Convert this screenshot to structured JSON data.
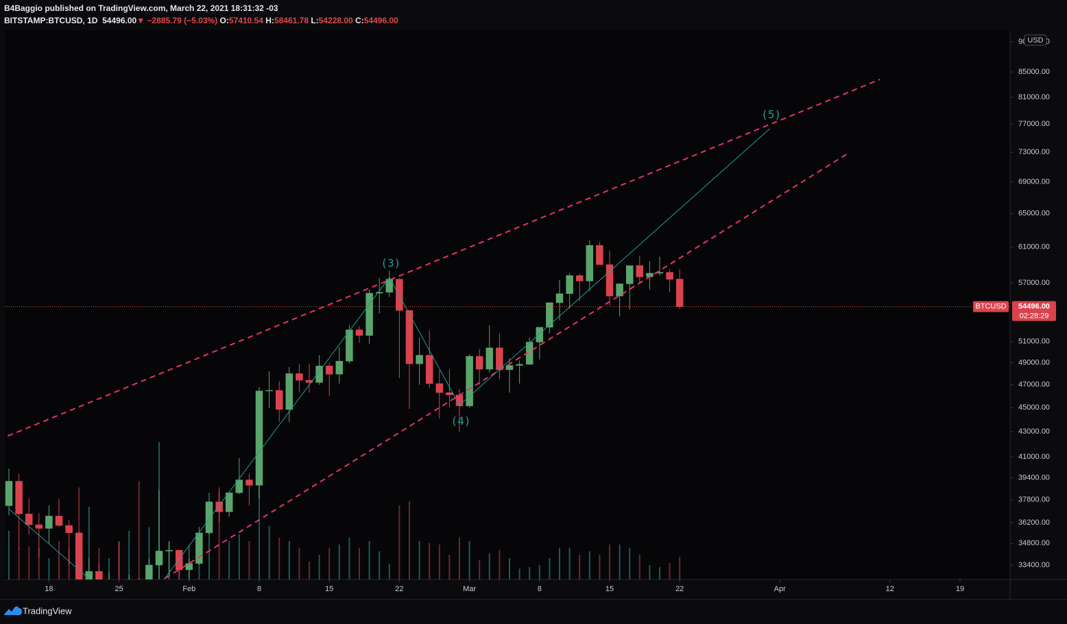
{
  "header": {
    "publisher": "B4Baggio published on TradingView.com, March 22, 2021 18:31:32 -03",
    "symbol": "BITSTAMP:BTCUSD, 1D",
    "last": "54496.00",
    "arrow": "▼",
    "change": "−2885.79 (−5.03%)",
    "ohlc": [
      {
        "key": "O:",
        "value": "57410.54"
      },
      {
        "key": "H:",
        "value": "58461.78"
      },
      {
        "key": "L:",
        "value": "54228.00"
      },
      {
        "key": "C:",
        "value": "54496.00"
      }
    ]
  },
  "footer": {
    "brand": "TradingView"
  },
  "chart_data": {
    "type": "candlestick",
    "log_scale": true,
    "up_color": "#5ba56c",
    "down_color": "#d9434e",
    "volume_up_color": "#1d5a55",
    "volume_down_color": "#6e262c",
    "currency": "USD",
    "x": [
      "01-14",
      "01-15",
      "01-16",
      "01-17",
      "01-18",
      "01-19",
      "01-20",
      "01-21",
      "01-22",
      "01-23",
      "01-24",
      "01-25",
      "01-26",
      "01-27",
      "01-28",
      "01-29",
      "01-30",
      "01-31",
      "02-01",
      "02-02",
      "02-03",
      "02-04",
      "02-05",
      "02-06",
      "02-07",
      "02-08",
      "02-09",
      "02-10",
      "02-11",
      "02-12",
      "02-13",
      "02-14",
      "02-15",
      "02-16",
      "02-17",
      "02-18",
      "02-19",
      "02-20",
      "02-21",
      "02-22",
      "02-23",
      "02-24",
      "02-25",
      "02-26",
      "02-27",
      "02-28",
      "03-01",
      "03-02",
      "03-03",
      "03-04",
      "03-05",
      "03-06",
      "03-07",
      "03-08",
      "03-09",
      "03-10",
      "03-11",
      "03-12",
      "03-13",
      "03-14",
      "03-15",
      "03-16",
      "03-17",
      "03-18",
      "03-19",
      "03-20",
      "03-21",
      "03-22"
    ],
    "open": [
      37370,
      39150,
      36800,
      36050,
      35800,
      36650,
      36000,
      35500,
      30800,
      33000,
      32100,
      32300,
      32250,
      32500,
      30400,
      33400,
      34300,
      34350,
      33100,
      33500,
      35500,
      37650,
      36950,
      38300,
      39250,
      38850,
      46450,
      46500,
      44850,
      48000,
      47400,
      47200,
      48700,
      47950,
      49150,
      52150,
      51600,
      55900,
      56000,
      57400,
      54100,
      48900,
      49700,
      47100,
      46300,
      46100,
      45150,
      49600,
      48400,
      50400,
      48350,
      48750,
      48850,
      50950,
      52400,
      54900,
      55850,
      57800,
      57200,
      61200,
      59000,
      55600,
      56900,
      58900,
      57650,
      58050,
      58150,
      57410.54
    ],
    "high": [
      40100,
      39700,
      37900,
      36850,
      37400,
      37850,
      36400,
      35600,
      33850,
      33500,
      32950,
      34900,
      32800,
      32600,
      33800,
      38500,
      34900,
      34400,
      34700,
      35900,
      37700,
      38700,
      38300,
      40900,
      39700,
      46800,
      48200,
      47300,
      48600,
      48900,
      48900,
      49700,
      49000,
      50500,
      52600,
      52500,
      56300,
      57500,
      58350,
      57500,
      54200,
      51400,
      52100,
      48300,
      48400,
      46600,
      49800,
      50300,
      52600,
      51800,
      49400,
      49200,
      51400,
      52400,
      54900,
      57300,
      58100,
      58000,
      61800,
      61600,
      60600,
      56900,
      58900,
      60000,
      59400,
      59900,
      58500,
      58461.78
    ],
    "low": [
      36700,
      34400,
      35400,
      33900,
      34800,
      35900,
      33400,
      30100,
      28800,
      31400,
      30900,
      31900,
      30800,
      29200,
      29900,
      31900,
      32800,
      32300,
      32300,
      33400,
      35400,
      36200,
      36600,
      38200,
      37400,
      37900,
      45000,
      43800,
      43800,
      46300,
      46300,
      47000,
      46000,
      47100,
      48900,
      50900,
      50800,
      53800,
      55500,
      47600,
      44900,
      47000,
      46700,
      44100,
      45000,
      43000,
      45000,
      47000,
      48100,
      47500,
      46300,
      47100,
      48800,
      49300,
      51800,
      53100,
      54300,
      55100,
      56100,
      59000,
      54600,
      53500,
      54200,
      57000,
      56300,
      57800,
      56000,
      54228
    ],
    "close": [
      39150,
      36800,
      36050,
      35800,
      36650,
      36000,
      35500,
      30800,
      33000,
      32100,
      32300,
      32250,
      32500,
      30400,
      33400,
      34300,
      34350,
      33100,
      33500,
      35500,
      37650,
      36950,
      38300,
      39250,
      38850,
      46450,
      46500,
      44850,
      48000,
      47400,
      47200,
      48700,
      47950,
      49150,
      52150,
      51600,
      55900,
      56000,
      57400,
      54100,
      48900,
      49700,
      47100,
      46300,
      46100,
      45150,
      49600,
      48400,
      50400,
      48350,
      48750,
      48850,
      50950,
      52400,
      54900,
      55850,
      57800,
      57200,
      61200,
      59000,
      55600,
      56900,
      58900,
      57650,
      58050,
      58150,
      57381.79,
      54496
    ],
    "volume": [
      7100,
      4600,
      4800,
      4600,
      3100,
      5600,
      4600,
      13400,
      10600,
      4600,
      3100,
      5600,
      7100,
      14300,
      7600,
      20000,
      5600,
      2600,
      3100,
      5600,
      12600,
      12800,
      5600,
      6600,
      5600,
      18600,
      7800,
      6100,
      5600,
      4600,
      2600,
      3600,
      4600,
      5100,
      6100,
      4600,
      5600,
      4100,
      2300,
      10800,
      11400,
      5600,
      5300,
      5100,
      3600,
      6100,
      5600,
      2800,
      3800,
      4300,
      3100,
      1600,
      1800,
      2100,
      3100,
      4600,
      4600,
      3600,
      4100,
      3600,
      5100,
      5100,
      4600,
      3600,
      2100,
      1800,
      2400,
      3300
    ],
    "xlim": [
      "01-14",
      "04-24"
    ],
    "xticks": [
      {
        "value": "01-18",
        "label": "18"
      },
      {
        "value": "01-25",
        "label": "25"
      },
      {
        "value": "02-01",
        "label": "Feb"
      },
      {
        "value": "02-08",
        "label": "8"
      },
      {
        "value": "02-15",
        "label": "15"
      },
      {
        "value": "02-22",
        "label": "22"
      },
      {
        "value": "03-01",
        "label": "Mar"
      },
      {
        "value": "03-08",
        "label": "8"
      },
      {
        "value": "03-15",
        "label": "15"
      },
      {
        "value": "03-22",
        "label": "22"
      },
      {
        "value": "04-01",
        "label": "Apr"
      },
      {
        "value": "04-12",
        "label": "12"
      },
      {
        "value": "04-19",
        "label": "19"
      }
    ],
    "ylim": [
      32500,
      92000
    ],
    "yticks": [
      {
        "value": 33400,
        "label": "33400.00"
      },
      {
        "value": 34800,
        "label": "34800.00"
      },
      {
        "value": 36200,
        "label": "36200.00"
      },
      {
        "value": 37800,
        "label": "37800.00"
      },
      {
        "value": 39400,
        "label": "39400.00"
      },
      {
        "value": 41000,
        "label": "41000.00"
      },
      {
        "value": 43000,
        "label": "43000.00"
      },
      {
        "value": 45000,
        "label": "45000.00"
      },
      {
        "value": 47000,
        "label": "47000.00"
      },
      {
        "value": 49000,
        "label": "49000.00"
      },
      {
        "value": 51000,
        "label": "51000.00"
      },
      {
        "value": 57000,
        "label": "57000.00"
      },
      {
        "value": 61000,
        "label": "61000.00"
      },
      {
        "value": 65000,
        "label": "65000.00"
      },
      {
        "value": 69000,
        "label": "69000.00"
      },
      {
        "value": 73000,
        "label": "73000.00"
      },
      {
        "value": 77000,
        "label": "77000.00"
      },
      {
        "value": 81000,
        "label": "81000.00"
      },
      {
        "value": 85000,
        "label": "85000.00"
      },
      {
        "value": 90000,
        "label": "90000.00"
      }
    ],
    "vlim": [
      0,
      80000
    ],
    "price_tag": {
      "symbol": "BTCUSD",
      "value": 54496,
      "label": "54496.00",
      "countdown": "02:28:29"
    },
    "drawings": [
      {
        "style": "dashed",
        "color": "#e8336b",
        "points": [
          {
            "x": "01-13",
            "y": 42360
          },
          {
            "x": "04-11",
            "y": 83800
          }
        ]
      },
      {
        "style": "dashed",
        "color": "#e8336b",
        "points": [
          {
            "x": "01-28",
            "y": 31960
          },
          {
            "x": "04-08",
            "y": 73010
          }
        ]
      },
      {
        "style": "solid",
        "color": "#1f9e98",
        "points": [
          {
            "x": "01-14",
            "y": 37140
          },
          {
            "x": "01-22",
            "y": 32550
          }
        ]
      },
      {
        "style": "solid",
        "color": "#1f9e98",
        "points": [
          {
            "x": "01-29",
            "y": 32100
          },
          {
            "x": "02-21",
            "y": 57590
          },
          {
            "x": "02-28",
            "y": 45210
          },
          {
            "x": "03-31",
            "y": 76340
          }
        ],
        "labels": [
          null,
          "(3)",
          "(4)",
          "(5)"
        ]
      }
    ]
  }
}
